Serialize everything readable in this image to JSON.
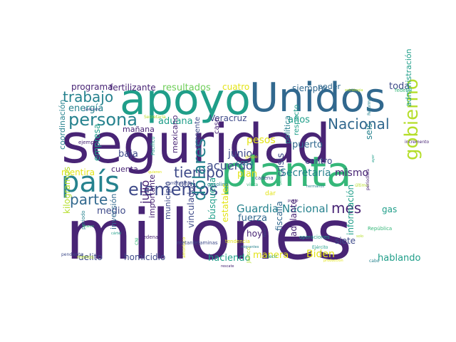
{
  "palette": {
    "dark_purple": "#482475",
    "indigo": "#3e4a89",
    "blue": "#31688e",
    "teal": "#26828e",
    "green_teal": "#1f9e89",
    "green": "#35b779",
    "light_green": "#6ece58",
    "lime": "#b5de2b",
    "yellow": "#e3e418"
  },
  "words": [
    {
      "text": "seguridad",
      "color": "dark_purple"
    },
    {
      "text": "millones",
      "color": "dark_purple"
    },
    {
      "text": "apoyo",
      "color": "green_teal"
    },
    {
      "text": "Unidos",
      "color": "blue"
    },
    {
      "text": "planta",
      "color": "green"
    },
    {
      "text": "país",
      "color": "teal"
    },
    {
      "text": "elementos",
      "color": "indigo"
    },
    {
      "text": "persona",
      "color": "teal"
    },
    {
      "text": "gobierno",
      "color": "lime"
    },
    {
      "text": "Nacional",
      "color": "blue"
    },
    {
      "text": "trabajo",
      "color": "teal"
    },
    {
      "text": "parte",
      "color": "blue"
    },
    {
      "text": "tiempo",
      "color": "indigo"
    },
    {
      "text": "dólares",
      "color": "teal"
    },
    {
      "text": "Guardia Nacional",
      "color": "teal"
    },
    {
      "text": "mes",
      "color": "dark_purple"
    },
    {
      "text": "resultados",
      "color": "light_green"
    },
    {
      "text": "fertilizante",
      "color": "dark_purple"
    },
    {
      "text": "programa",
      "color": "dark_purple"
    },
    {
      "text": "cuatro",
      "color": "yellow"
    },
    {
      "text": "siempre",
      "color": "blue"
    },
    {
      "text": "poder",
      "color": "blue"
    },
    {
      "text": "toda",
      "color": "indigo"
    },
    {
      "text": "energía",
      "color": "teal"
    },
    {
      "text": "aduana",
      "color": "green_teal"
    },
    {
      "text": "mañana",
      "color": "dark_purple"
    },
    {
      "text": "Veracruz",
      "color": "indigo"
    },
    {
      "text": "años",
      "color": "green_teal"
    },
    {
      "text": "acuerdo",
      "color": "indigo"
    },
    {
      "text": "pesos",
      "color": "yellow"
    },
    {
      "text": "junio",
      "color": "indigo"
    },
    {
      "text": "puerto",
      "color": "blue"
    },
    {
      "text": "centro",
      "color": "indigo"
    },
    {
      "text": "baja",
      "color": "indigo"
    },
    {
      "text": "empresa",
      "color": "green_teal"
    },
    {
      "text": "mentira",
      "color": "yellow"
    },
    {
      "text": "cuenta",
      "color": "dark_purple"
    },
    {
      "text": "Secretaría",
      "color": "teal"
    },
    {
      "text": "mismo",
      "color": "dark_purple"
    },
    {
      "text": "plan",
      "color": "yellow"
    },
    {
      "text": "crisis",
      "color": "indigo"
    },
    {
      "text": "cosa",
      "color": "teal"
    },
    {
      "text": "total",
      "color": "indigo"
    },
    {
      "text": "medio",
      "color": "indigo"
    },
    {
      "text": "julio",
      "color": "dark_purple"
    },
    {
      "text": "importante",
      "color": "dark_purple"
    },
    {
      "text": "municipio",
      "color": "indigo"
    },
    {
      "text": "inversión",
      "color": "blue"
    },
    {
      "text": "búsqueda",
      "color": "green_teal"
    },
    {
      "text": "estatales",
      "color": "yellow"
    },
    {
      "text": "fuerza",
      "color": "blue"
    },
    {
      "text": "hoy",
      "color": "dark_purple"
    },
    {
      "text": "vinculado",
      "color": "indigo"
    },
    {
      "text": "fiscalía",
      "color": "blue"
    },
    {
      "text": "siete",
      "color": "indigo"
    },
    {
      "text": "información",
      "color": "green_teal"
    },
    {
      "text": "Biden",
      "color": "yellow"
    },
    {
      "text": "gas",
      "color": "green_teal"
    },
    {
      "text": "homicidio",
      "color": "indigo"
    },
    {
      "text": "delito",
      "color": "indigo"
    },
    {
      "text": "haciendo",
      "color": "green_teal"
    },
    {
      "text": "manera",
      "color": "yellow"
    },
    {
      "text": "hablando",
      "color": "green_teal"
    },
    {
      "text": "kilogramos",
      "color": "lime"
    },
    {
      "text": "coordinación",
      "color": "teal"
    },
    {
      "text": "mexicano",
      "color": "dark_purple"
    },
    {
      "text": "presente",
      "color": "indigo"
    },
    {
      "text": "seis",
      "color": "teal"
    },
    {
      "text": "administración",
      "color": "green_teal"
    },
    {
      "text": "política",
      "color": "teal"
    },
    {
      "text": "respecto",
      "color": "green_teal"
    },
    {
      "text": "adelante",
      "color": "dark_purple"
    },
    {
      "text": "caso",
      "color": "dark_purple"
    },
    {
      "text": "dar",
      "color": "yellow"
    }
  ],
  "small_words": [
    "Gabinete",
    "Reforma",
    "federal",
    "estrategia",
    "incremento",
    "Pacífico",
    "quieren",
    "combustible",
    "gasolina",
    "petróleo",
    "último",
    "Sedena",
    "cártel",
    "amoniaco",
    "metanfetaminas",
    "migrantes",
    "visita",
    "Jalisco",
    "rescate",
    "Ejército",
    "tendencia",
    "favor",
    "cabo",
    "República",
    "solo",
    "periodista",
    "operaciones",
    "producción",
    "pendiente",
    "periodo",
    "Nuevo",
    "Secretaría",
    "ejemplo",
    "ayer",
    "grupo",
    "cadena",
    "hermanos",
    "CNI",
    "menos",
    "punto",
    "decir"
  ]
}
